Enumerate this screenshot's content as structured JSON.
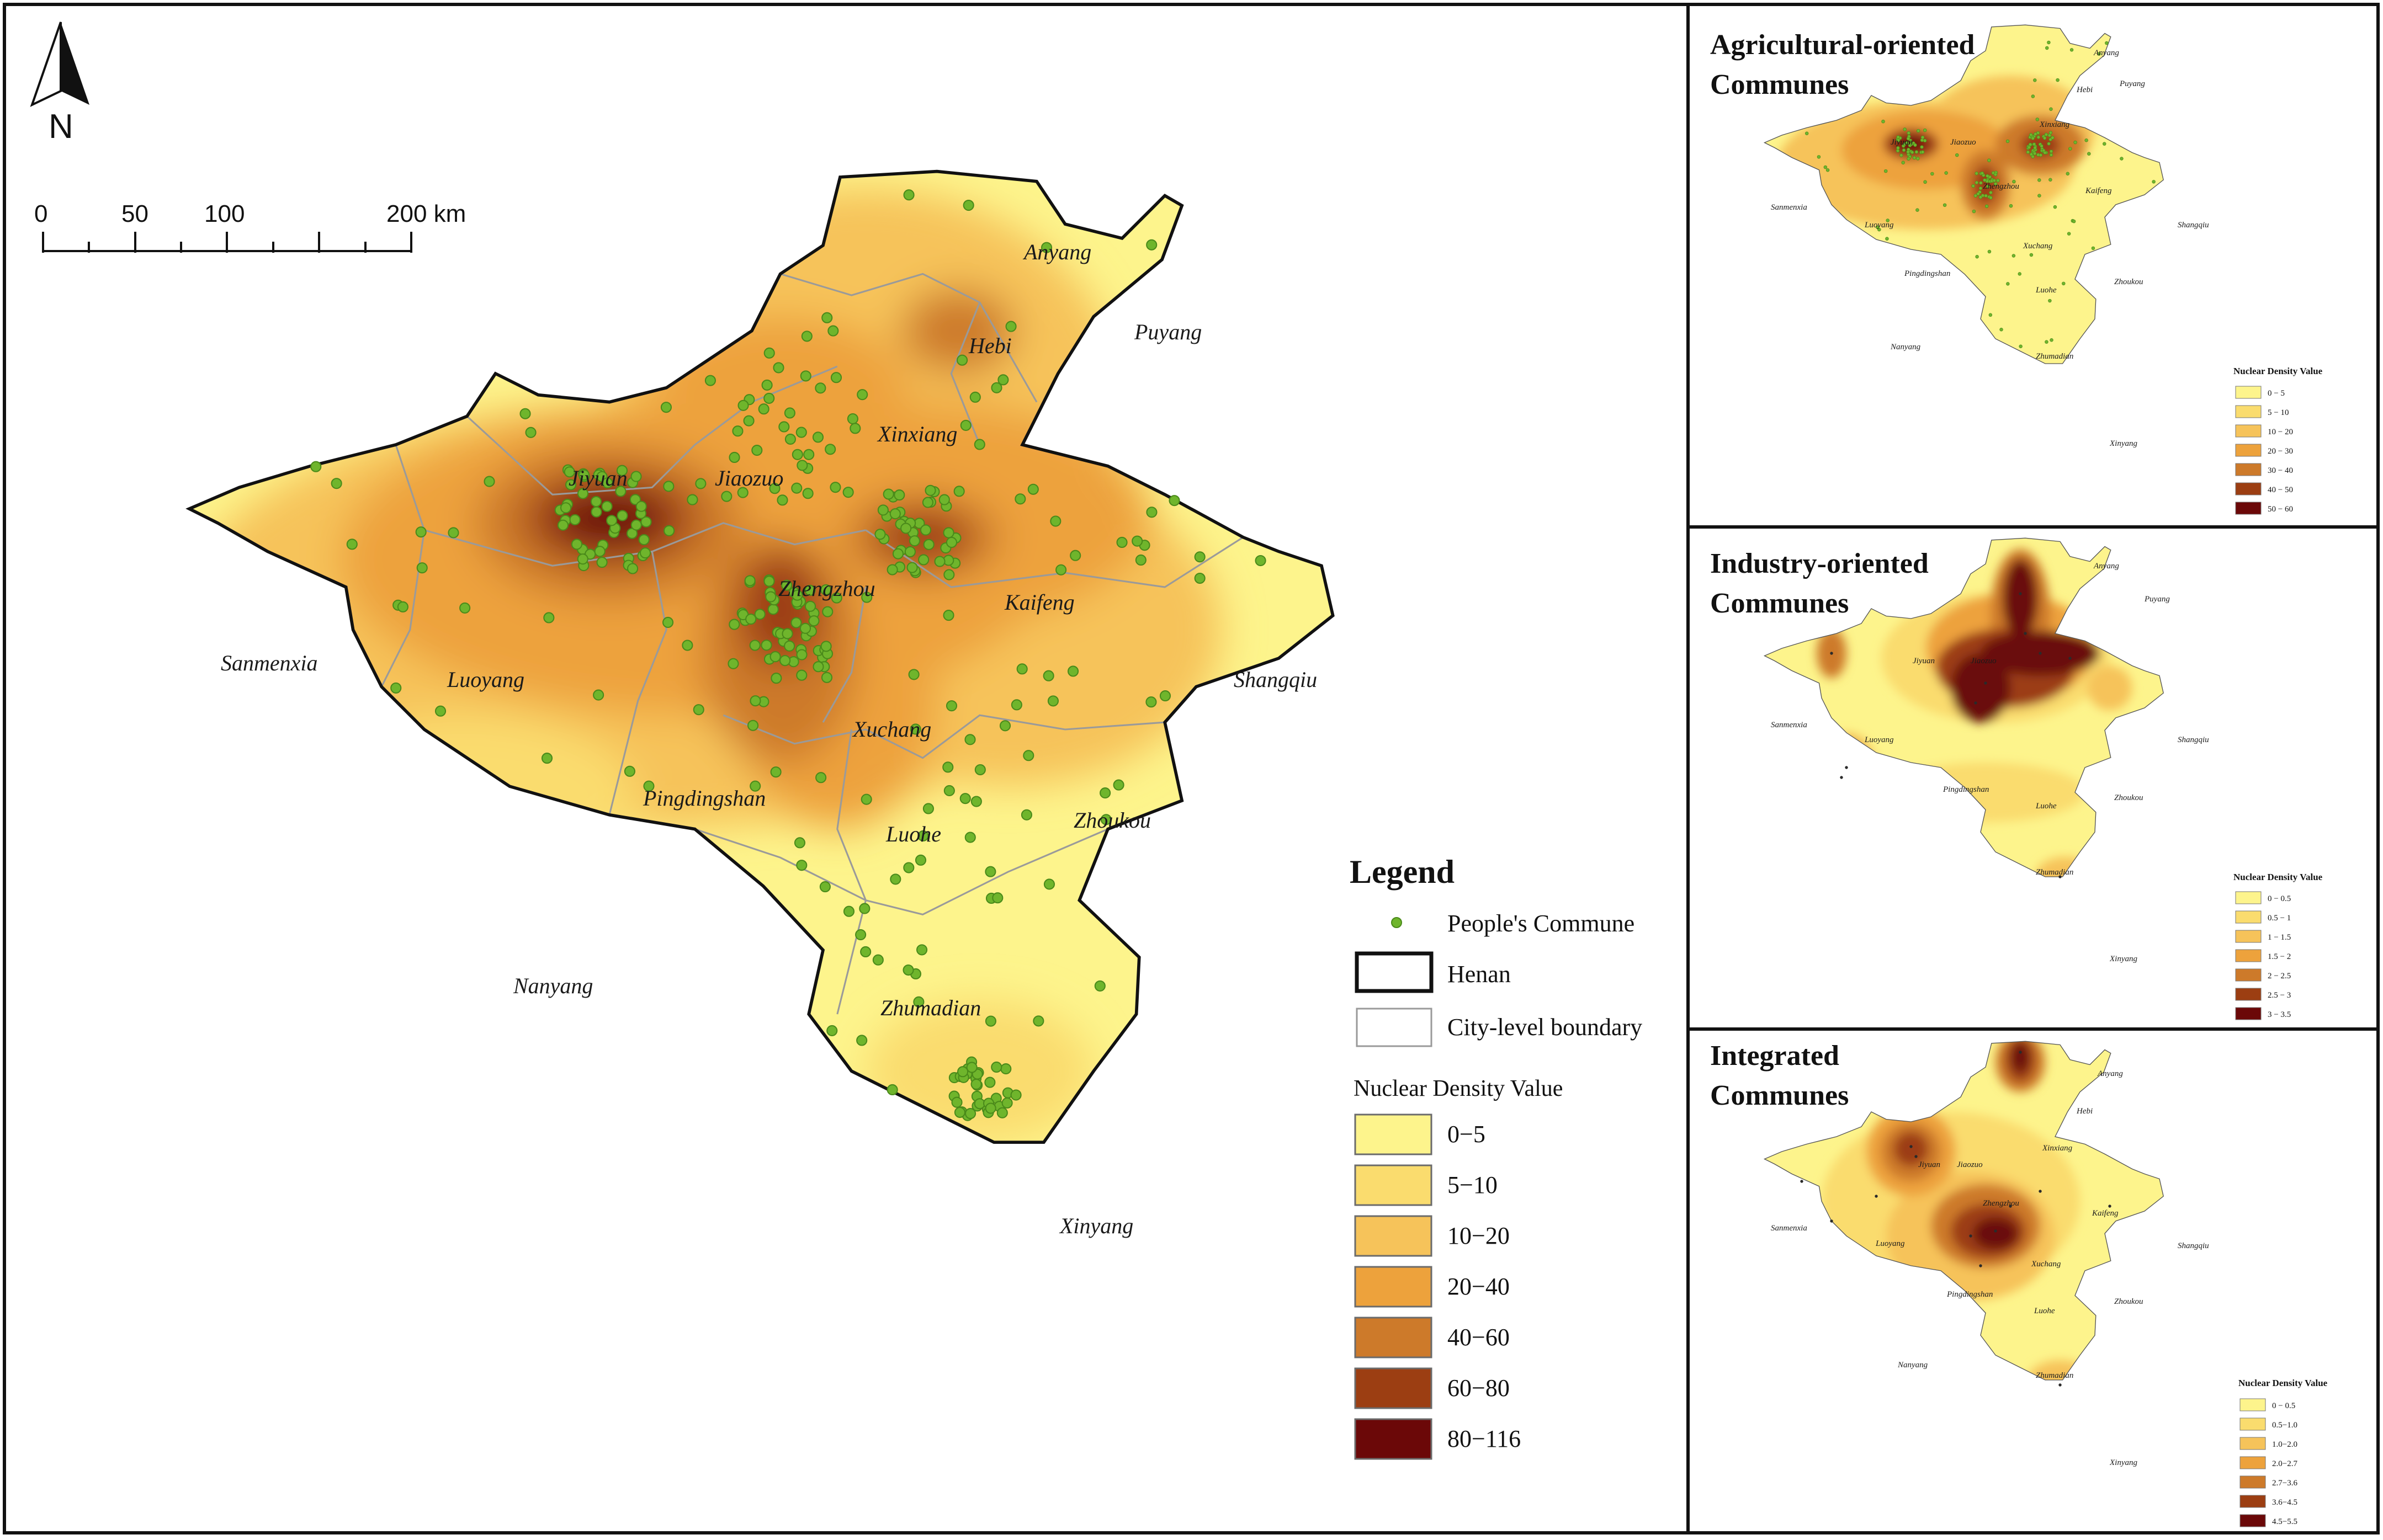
{
  "main_map": {
    "north_label": "N",
    "scale_ticks": [
      "0",
      "50",
      "100",
      "200 km"
    ],
    "cities": [
      "Anyang",
      "Puyang",
      "Hebi",
      "Xinxiang",
      "Jiyuan",
      "Jiaozuo",
      "Zhengzhou",
      "Kaifeng",
      "Sanmenxia",
      "Luoyang",
      "Shangqiu",
      "Xuchang",
      "Pingdingshan",
      "Luohe",
      "Zhoukou",
      "Nanyang",
      "Zhumadian",
      "Xinyang"
    ]
  },
  "legend": {
    "title": "Legend",
    "commune_label": "People's Commune",
    "henan_label": "Henan",
    "boundary_label": "City-level boundary",
    "density_title": "Nuclear Density Value",
    "classes": [
      {
        "label": "0−5",
        "color": "#fdf48c"
      },
      {
        "label": "5−10",
        "color": "#fadc6e"
      },
      {
        "label": "10−20",
        "color": "#f6c35a"
      },
      {
        "label": "20−40",
        "color": "#eda23c"
      },
      {
        "label": "40−60",
        "color": "#cd7a2a"
      },
      {
        "label": "60−80",
        "color": "#9c3e12"
      },
      {
        "label": "80−116",
        "color": "#6b0808"
      }
    ]
  },
  "panels": [
    {
      "title_line1": "Agricultural-oriented",
      "title_line2": "Communes",
      "legend_title": "Nuclear Density Value",
      "classes": [
        "0 − 5",
        "5 − 10",
        "10 − 20",
        "20 − 30",
        "30 − 40",
        "40 − 50",
        "50 − 60"
      ]
    },
    {
      "title_line1": "Industry-oriented",
      "title_line2": "Communes",
      "legend_title": "Nuclear Density Value",
      "classes": [
        "0 − 0.5",
        "0.5 − 1",
        "1 − 1.5",
        "1.5 − 2",
        "2 − 2.5",
        "2.5 − 3",
        "3 − 3.5"
      ]
    },
    {
      "title_line1": "Integrated",
      "title_line2": "Communes",
      "legend_title": "Nuclear Density Value",
      "classes": [
        "0 − 0.5",
        "0.5−1.0",
        "1.0−2.0",
        "2.0−2.7",
        "2.7−3.6",
        "3.6−4.5",
        "4.5−5.5"
      ]
    }
  ],
  "colors": {
    "ramp": [
      "#fdf48c",
      "#fadc6e",
      "#f6c35a",
      "#eda23c",
      "#cd7a2a",
      "#9c3e12",
      "#6b0808"
    ],
    "commune_dot": "#6fb52c",
    "panel_dot": "#2a2a2a"
  }
}
